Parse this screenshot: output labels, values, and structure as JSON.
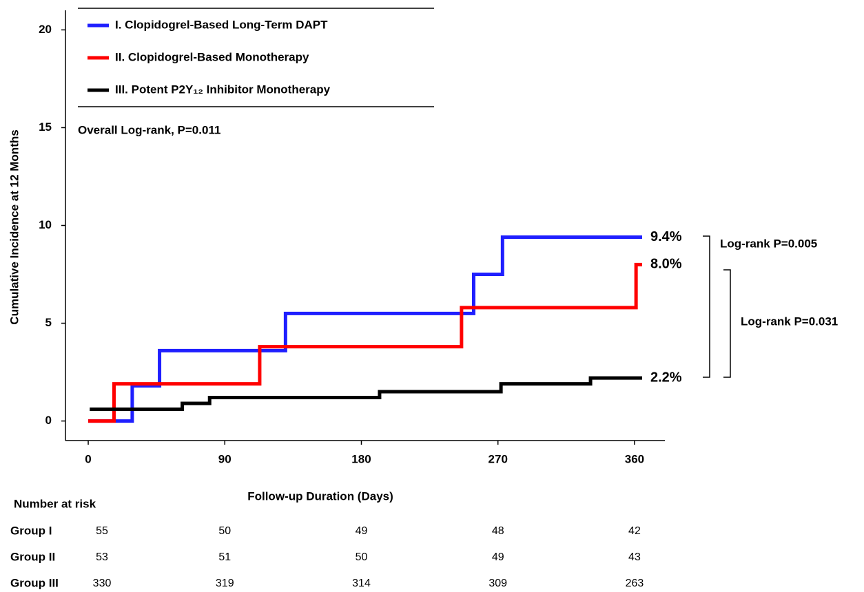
{
  "chart_data": {
    "type": "step",
    "x_label": "Follow-up Duration (Days)",
    "y_label": "Cumulative Incidence at 12 Months",
    "xlim": [
      -15,
      380
    ],
    "xticks": [
      0,
      90,
      180,
      270,
      360
    ],
    "ylim": [
      -1,
      21
    ],
    "yticks": [
      0,
      5,
      10,
      15,
      20
    ],
    "series": [
      {
        "name": "I. Clopidogrel-Based Long-Term DAPT",
        "color": "#1f1fff",
        "x": [
          0,
          29,
          47,
          130,
          254,
          273,
          365
        ],
        "values": [
          0,
          1.8,
          3.6,
          5.5,
          7.5,
          9.4,
          9.4
        ],
        "value_labels": [
          null,
          null,
          null,
          null,
          null,
          null,
          "9.4%"
        ]
      },
      {
        "name": "II. Clopidogrel-Based Monotherapy",
        "color": "#ff0000",
        "x": [
          0,
          17,
          113,
          246,
          361,
          365
        ],
        "values": [
          0,
          1.9,
          3.8,
          5.8,
          8.0,
          8.0
        ],
        "value_labels": [
          null,
          null,
          null,
          null,
          null,
          "8.0%"
        ]
      },
      {
        "name": "III. Potent P2Y₁₂ Inhibitor Monotherapy",
        "color": "#000000",
        "x": [
          1,
          62,
          80,
          192,
          272,
          331,
          365
        ],
        "values": [
          0.6,
          0.9,
          1.2,
          1.5,
          1.9,
          2.2,
          2.2
        ],
        "value_labels": [
          null,
          null,
          null,
          null,
          null,
          null,
          "2.2%"
        ]
      }
    ],
    "annotations": [
      "Overall Log-rank, P=0.011",
      "Log-rank P=0.005",
      "Log-rank P=0.031"
    ],
    "risk_table": {
      "title": "Number at risk",
      "rows": [
        {
          "label": "Group I",
          "color": "#1f1fff",
          "values": [
            55,
            50,
            49,
            48,
            42
          ]
        },
        {
          "label": "Group II",
          "color": "#ff0000",
          "values": [
            53,
            51,
            50,
            49,
            43
          ]
        },
        {
          "label": "Group III",
          "color": "#000000",
          "values": [
            330,
            319,
            314,
            309,
            263
          ]
        }
      ]
    }
  }
}
